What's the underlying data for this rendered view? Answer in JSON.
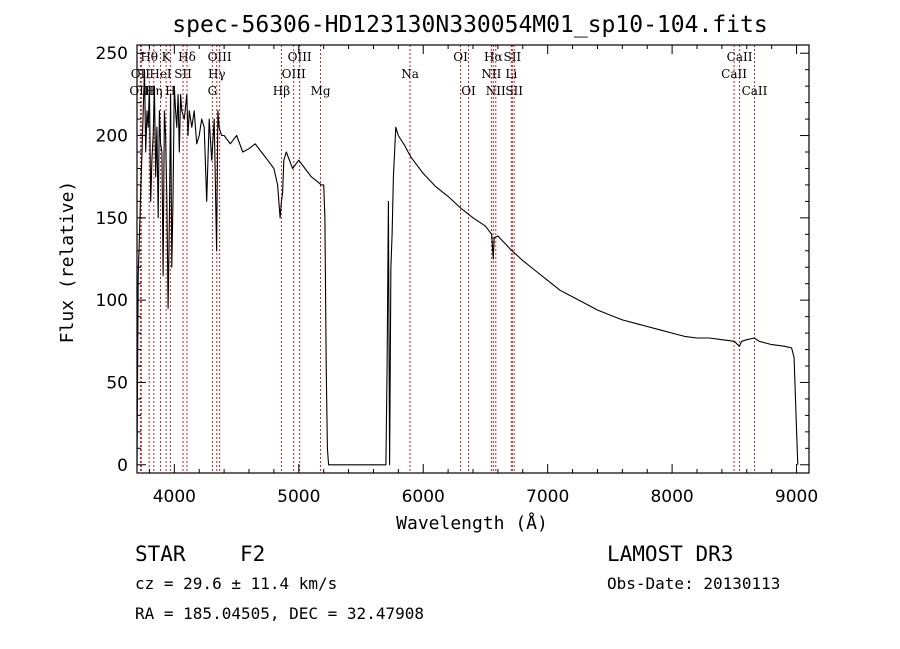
{
  "chart_data": {
    "type": "line",
    "title": "spec-56306-HD123130N330054M01_sp10-104.fits",
    "xlabel": "Wavelength (Å)",
    "ylabel": "Flux (relative)",
    "xlim": [
      3700,
      9100
    ],
    "ylim": [
      -5,
      255
    ],
    "xticks": [
      4000,
      5000,
      6000,
      7000,
      8000,
      9000
    ],
    "yticks": [
      0,
      50,
      100,
      150,
      200,
      250
    ],
    "series": [
      {
        "name": "flux",
        "x": [
          3700,
          3710,
          3720,
          3730,
          3740,
          3750,
          3760,
          3770,
          3780,
          3790,
          3800,
          3810,
          3820,
          3830,
          3840,
          3850,
          3860,
          3870,
          3880,
          3890,
          3900,
          3910,
          3920,
          3930,
          3940,
          3950,
          3960,
          3970,
          3980,
          3990,
          4000,
          4010,
          4020,
          4030,
          4040,
          4050,
          4060,
          4080,
          4100,
          4110,
          4120,
          4140,
          4160,
          4180,
          4200,
          4220,
          4240,
          4260,
          4280,
          4300,
          4320,
          4340,
          4350,
          4360,
          4380,
          4400,
          4450,
          4500,
          4550,
          4600,
          4650,
          4700,
          4750,
          4800,
          4830,
          4850,
          4860,
          4870,
          4880,
          4900,
          4950,
          5000,
          5050,
          5100,
          5150,
          5180,
          5200,
          5210,
          5220,
          5230,
          5240,
          5700,
          5710,
          5720,
          5730,
          5740,
          5750,
          5760,
          5770,
          5780,
          5800,
          5850,
          5900,
          6000,
          6100,
          6200,
          6300,
          6400,
          6500,
          6550,
          6562,
          6570,
          6600,
          6700,
          6800,
          6900,
          7000,
          7100,
          7200,
          7300,
          7400,
          7500,
          7600,
          7700,
          7800,
          7900,
          8000,
          8100,
          8200,
          8300,
          8400,
          8500,
          8540,
          8560,
          8600,
          8660,
          8700,
          8800,
          8900,
          8960,
          8980,
          9000,
          9010
        ],
        "values": [
          0,
          115,
          140,
          165,
          190,
          215,
          240,
          190,
          215,
          205,
          230,
          160,
          185,
          200,
          230,
          175,
          205,
          150,
          215,
          195,
          190,
          115,
          215,
          200,
          160,
          95,
          150,
          225,
          120,
          165,
          230,
          215,
          205,
          225,
          190,
          225,
          215,
          210,
          225,
          200,
          215,
          205,
          215,
          195,
          200,
          210,
          205,
          160,
          210,
          185,
          210,
          130,
          215,
          205,
          200,
          200,
          195,
          200,
          190,
          192,
          195,
          190,
          185,
          180,
          170,
          150,
          160,
          165,
          185,
          190,
          180,
          185,
          180,
          175,
          172,
          170,
          170,
          150,
          60,
          10,
          0,
          0,
          60,
          160,
          0,
          120,
          140,
          175,
          190,
          205,
          200,
          194,
          187,
          177,
          169,
          163,
          156,
          150,
          145,
          140,
          125,
          138,
          139,
          131,
          124,
          118,
          112,
          106,
          102,
          98,
          94,
          91,
          88,
          86,
          84,
          82,
          80,
          78,
          77,
          77,
          76,
          75,
          72,
          75,
          76,
          77,
          75,
          73,
          72,
          71,
          65,
          20,
          0
        ]
      }
    ],
    "lines": [
      {
        "label": "OII",
        "x": 3727,
        "row": 1
      },
      {
        "label": "OIII",
        "x": 3735,
        "row": 2
      },
      {
        "label": "Hθ",
        "x": 3798,
        "row": 0
      },
      {
        "label": "Hη",
        "x": 3835,
        "row": 2
      },
      {
        "label": "HeI",
        "x": 3889,
        "row": 1
      },
      {
        "label": "K",
        "x": 3934,
        "row": 0
      },
      {
        "label": "H",
        "x": 3968,
        "row": 2
      },
      {
        "label": "SII",
        "x": 4070,
        "row": 1
      },
      {
        "label": "Hδ",
        "x": 4102,
        "row": 0
      },
      {
        "label": "G",
        "x": 4306,
        "row": 2
      },
      {
        "label": "Hγ",
        "x": 4341,
        "row": 1
      },
      {
        "label": "OIII",
        "x": 4364,
        "row": 0
      },
      {
        "label": "Hβ",
        "x": 4861,
        "row": 2
      },
      {
        "label": "OIII",
        "x": 4959,
        "row": 1
      },
      {
        "label": "OIII",
        "x": 5007,
        "row": 0
      },
      {
        "label": "Mg",
        "x": 5175,
        "row": 2
      },
      {
        "label": "Na",
        "x": 5894,
        "row": 1
      },
      {
        "label": "OI",
        "x": 6300,
        "row": 0
      },
      {
        "label": "OI",
        "x": 6364,
        "row": 2
      },
      {
        "label": "NII",
        "x": 6548,
        "row": 1
      },
      {
        "label": "Hα",
        "x": 6563,
        "row": 0
      },
      {
        "label": "NII",
        "x": 6583,
        "row": 2
      },
      {
        "label": "Li",
        "x": 6708,
        "row": 1
      },
      {
        "label": "SII",
        "x": 6716,
        "row": 0
      },
      {
        "label": "SII",
        "x": 6731,
        "row": 2
      },
      {
        "label": "CaII",
        "x": 8498,
        "row": 1
      },
      {
        "label": "CaII",
        "x": 8542,
        "row": 0
      },
      {
        "label": "CaII",
        "x": 8662,
        "row": 2
      }
    ]
  },
  "info": {
    "object_class": "STAR",
    "subclass": "F2",
    "survey": "LAMOST DR3",
    "redshift": "cz = 29.6 ± 11.4 km/s",
    "obs_date": "Obs-Date: 20130113",
    "coords": "RA = 185.04505, DEC =  32.47908"
  },
  "colors": {
    "line_marker": "#cc2222",
    "spectrum": "#000000",
    "axes": "#000000"
  }
}
